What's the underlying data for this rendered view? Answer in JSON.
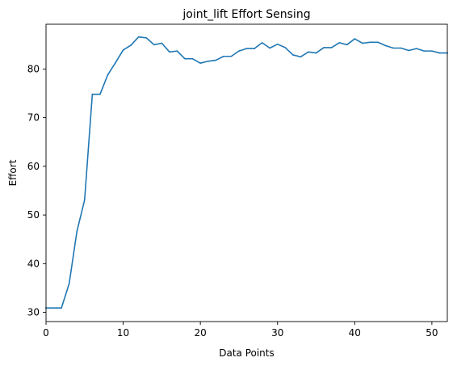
{
  "chart_data": {
    "type": "line",
    "title": "joint_lift Effort Sensing",
    "xlabel": "Data Points",
    "ylabel": "Effort",
    "xlim": [
      0,
      52
    ],
    "ylim": [
      28.1,
      89.2
    ],
    "x_ticks": [
      0,
      10,
      20,
      30,
      40,
      50
    ],
    "y_ticks": [
      30,
      40,
      50,
      60,
      70,
      80
    ],
    "grid": false,
    "legend": "none",
    "colors": {
      "series": "#1f77b4",
      "axes": "#000000",
      "background": "#ffffff"
    },
    "series": [
      {
        "x": [
          0,
          1,
          2,
          3,
          4,
          5,
          6,
          7,
          8,
          9,
          10,
          11,
          12,
          13,
          14,
          15,
          16,
          17,
          18,
          19,
          20,
          21,
          22,
          23,
          24,
          25,
          26,
          27,
          28,
          29,
          30,
          31,
          32,
          33,
          34,
          35,
          36,
          37,
          38,
          39,
          40,
          41,
          42,
          43,
          44,
          45,
          46,
          47,
          48,
          49,
          50,
          51,
          52
        ],
        "values": [
          30.9,
          30.9,
          30.9,
          35.9,
          46.6,
          53.1,
          74.8,
          74.8,
          78.8,
          81.3,
          83.9,
          84.9,
          86.6,
          86.4,
          85.0,
          85.3,
          83.5,
          83.7,
          82.1,
          82.1,
          81.2,
          81.6,
          81.8,
          82.6,
          82.6,
          83.7,
          84.2,
          84.2,
          85.4,
          84.3,
          85.1,
          84.4,
          82.9,
          82.5,
          83.5,
          83.3,
          84.4,
          84.4,
          85.4,
          85.0,
          86.2,
          85.3,
          85.5,
          85.5,
          84.8,
          84.3,
          84.3,
          83.8,
          84.2,
          83.7,
          83.7,
          83.3,
          83.3
        ]
      }
    ]
  }
}
